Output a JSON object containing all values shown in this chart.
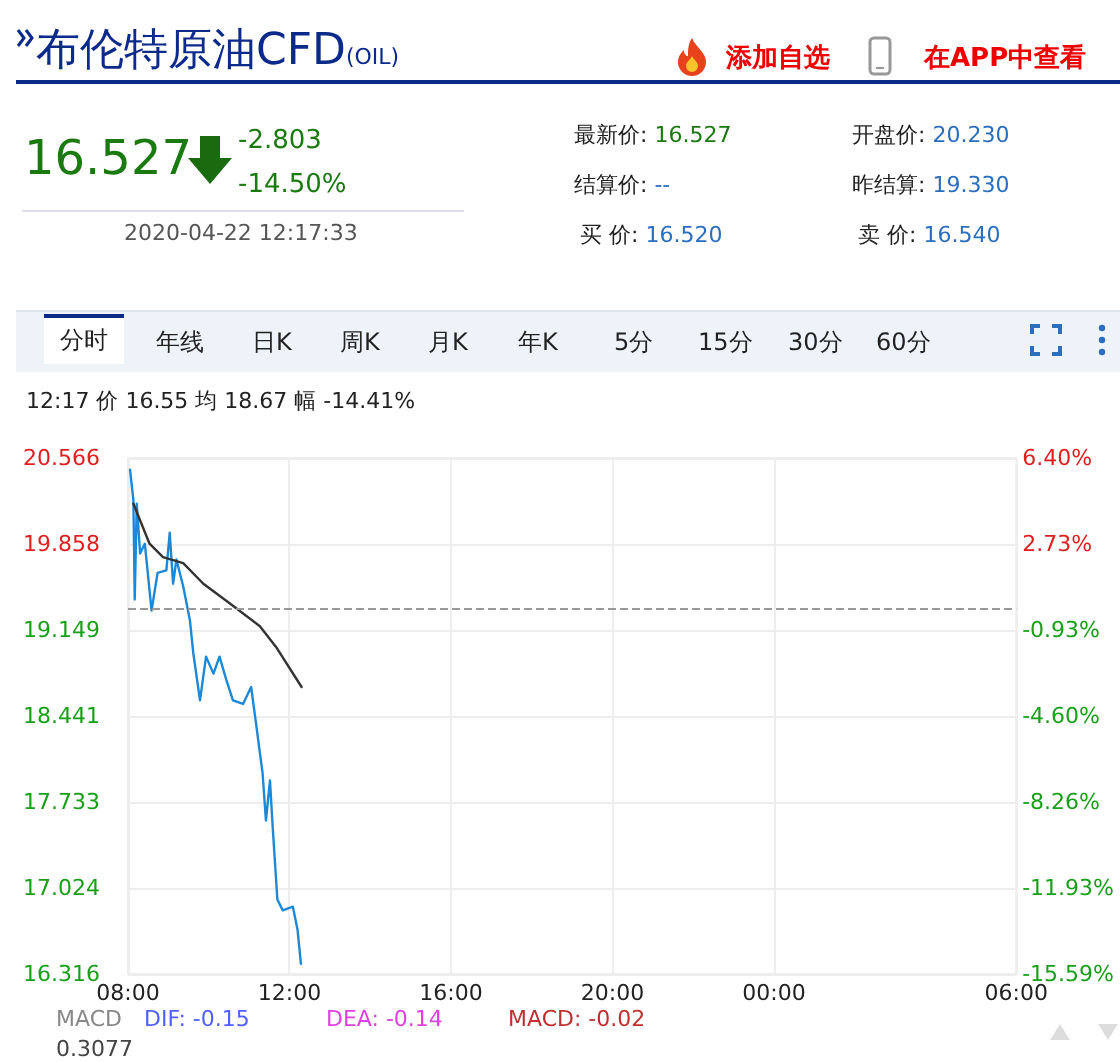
{
  "chart_data": {
    "type": "line",
    "title": "布伦特原油CFD",
    "subtitle": "(OIL)",
    "annotations": [
      "添加自选",
      "在APP中查看",
      "16.527",
      "-2.803",
      "-14.50%",
      "2020-04-22 12:17:33",
      "最新价: 16.527",
      "开盘价: 20.230",
      "结算价: --",
      "昨结算: 19.330",
      "买  价: 16.520",
      "卖  价: 16.540",
      "分时",
      "年线",
      "日K",
      "周K",
      "月K",
      "年K",
      "5分",
      "15分",
      "30分",
      "60分",
      "12:17 价 16.55 均 18.67 幅 -14.41%",
      "MACD",
      "DIF: -0.15",
      "DEA: -0.14",
      "MACD: -0.02",
      "0.3077"
    ],
    "series": [
      {
        "color": "#1e88d8",
        "x": [
          "2020-04-22T08:03",
          "2020-04-22T08:08",
          "2020-04-22T08:10",
          "2020-04-22T08:13",
          "2020-04-22T08:18",
          "2020-04-22T08:25",
          "2020-04-22T08:35",
          "2020-04-22T08:44",
          "2020-04-22T08:57",
          "2020-04-22T09:02",
          "2020-04-22T09:07",
          "2020-04-22T09:12",
          "2020-04-22T09:22",
          "2020-04-22T09:32",
          "2020-04-22T09:37",
          "2020-04-22T09:47",
          "2020-04-22T09:56",
          "2020-04-22T10:07",
          "2020-04-22T10:16",
          "2020-04-22T10:26",
          "2020-04-22T10:36",
          "2020-04-22T10:51",
          "2020-04-22T11:03",
          "2020-04-22T11:11",
          "2020-04-22T11:20",
          "2020-04-22T11:25",
          "2020-04-22T11:31",
          "2020-04-22T11:35",
          "2020-04-22T11:42",
          "2020-04-22T11:50",
          "2020-04-22T12:05",
          "2020-04-22T12:12",
          "2020-04-22T12:17"
        ],
        "values": [
          20.47,
          20.22,
          19.4,
          20.19,
          19.78,
          19.86,
          19.31,
          19.62,
          19.64,
          19.95,
          19.53,
          19.73,
          19.51,
          19.23,
          18.96,
          18.57,
          18.93,
          18.79,
          18.93,
          18.74,
          18.57,
          18.54,
          18.68,
          18.35,
          17.97,
          17.58,
          17.91,
          17.53,
          16.93,
          16.84,
          16.87,
          16.68,
          16.4
        ]
      },
      {
        "color": "#333333",
        "x": [
          "2020-04-22T08:08",
          "2020-04-22T08:32",
          "2020-04-22T08:52",
          "2020-04-22T09:22",
          "2020-04-22T09:52",
          "2020-04-22T10:31",
          "2020-04-22T11:16",
          "2020-04-22T11:40",
          "2020-04-22T12:18"
        ],
        "values": [
          20.19,
          19.86,
          19.75,
          19.7,
          19.53,
          19.37,
          19.18,
          19.01,
          18.68
        ]
      }
    ],
    "xlim": [
      "2020-04-22T08:00",
      "2020-04-23T06:00"
    ],
    "xticks": [
      {
        "value": "2020-04-22T08:00",
        "label": "08:00"
      },
      {
        "value": "2020-04-22T12:00",
        "label": "12:00"
      },
      {
        "value": "2020-04-22T16:00",
        "label": "16:00"
      },
      {
        "value": "2020-04-22T20:00",
        "label": "20:00"
      },
      {
        "value": "2020-04-23T00:00",
        "label": "00:00"
      },
      {
        "value": "2020-04-23T06:00",
        "label": "06:00"
      }
    ],
    "ylim": [
      16.316,
      20.566
    ],
    "yticks": [
      16.316,
      17.024,
      17.733,
      18.441,
      19.149,
      19.858,
      20.566
    ],
    "y2lim": [
      -15.59,
      6.4
    ],
    "y2ticks": [
      {
        "value": -15.59,
        "label": "-15.59%"
      },
      {
        "value": -11.93,
        "label": "-11.93%"
      },
      {
        "value": -8.26,
        "label": "-8.26%"
      },
      {
        "value": -4.6,
        "label": "-4.60%"
      },
      {
        "value": -0.93,
        "label": "-0.93%"
      },
      {
        "value": 2.73,
        "label": "2.73%"
      },
      {
        "value": 6.4,
        "label": "6.40%"
      }
    ],
    "ref_lines": [
      {
        "axis": "y",
        "value": 19.33,
        "color": "#999999",
        "line_style": "dashed"
      }
    ],
    "grid": true,
    "marker": "none",
    "line_style": "solid"
  }
}
